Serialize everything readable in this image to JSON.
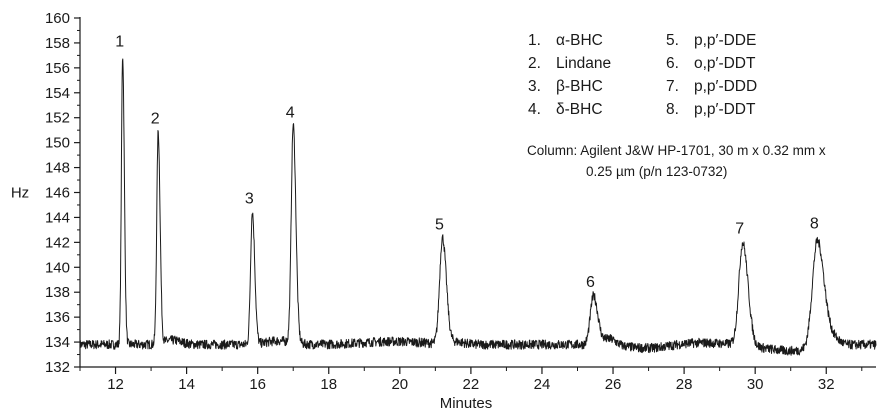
{
  "chart_data": {
    "type": "line",
    "title": "",
    "xlabel": "Minutes",
    "ylabel": "Hz",
    "xlim": [
      11.0,
      33.4
    ],
    "ylim": [
      132,
      160
    ],
    "x_ticks": [
      12,
      14,
      16,
      18,
      20,
      22,
      24,
      26,
      28,
      30,
      32
    ],
    "y_ticks": [
      132,
      134,
      136,
      138,
      140,
      142,
      144,
      146,
      148,
      150,
      152,
      154,
      156,
      158,
      160
    ],
    "grid": false,
    "baseline": 133.8,
    "peaks": [
      {
        "label": "1",
        "x": 12.2,
        "y": 157.0,
        "width": 0.035
      },
      {
        "label": "2",
        "x": 13.2,
        "y": 150.8,
        "width": 0.04
      },
      {
        "label": "3",
        "x": 15.85,
        "y": 144.4,
        "width": 0.05
      },
      {
        "label": "4",
        "x": 17.0,
        "y": 151.3,
        "width": 0.055
      },
      {
        "label": "5",
        "x": 21.2,
        "y": 142.3,
        "width": 0.08
      },
      {
        "label": "6",
        "x": 25.45,
        "y": 137.7,
        "width": 0.09
      },
      {
        "label": "7",
        "x": 29.65,
        "y": 142.0,
        "width": 0.11
      },
      {
        "label": "8",
        "x": 31.75,
        "y": 142.4,
        "width": 0.14
      }
    ],
    "legend": [
      {
        "num": "1.",
        "name": "α-BHC"
      },
      {
        "num": "2.",
        "name": "Lindane"
      },
      {
        "num": "3.",
        "name": "β-BHC"
      },
      {
        "num": "4.",
        "name": "δ-BHC"
      },
      {
        "num": "5.",
        "name": "p,p′-DDE"
      },
      {
        "num": "6.",
        "name": "o,p′-DDT"
      },
      {
        "num": "7.",
        "name": "p,p′-DDD"
      },
      {
        "num": "8.",
        "name": "p,p′-DDT"
      }
    ],
    "legend_placement": "top-right",
    "annotation_lines": [
      "Column: Agilent J&W HP-1701, 30 m x 0.32 mm x",
      "0.25 µm (p/n 123-0732)"
    ]
  }
}
